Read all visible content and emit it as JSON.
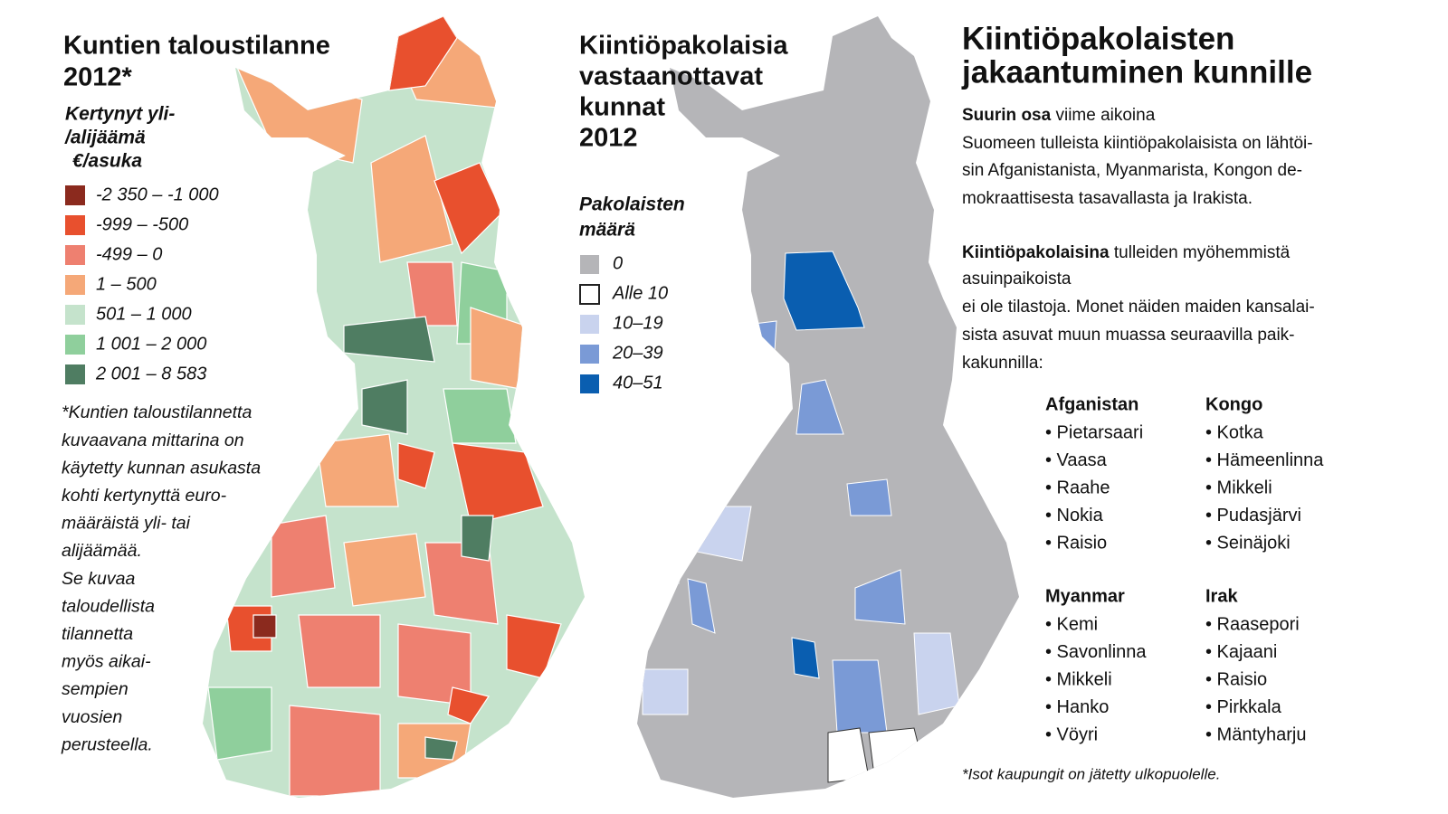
{
  "left_map": {
    "title_lines": [
      "Kuntien taloustilanne",
      "2012*"
    ],
    "legend_title_lines": [
      "Kertynyt yli-",
      "/alijäämä",
      "€/asuka"
    ],
    "legend": [
      {
        "label": "-2 350 – -1 000",
        "color": "#8b2a1e"
      },
      {
        "label": "-999 – -500",
        "color": "#e8502e"
      },
      {
        "label": "-499 – 0",
        "color": "#ee8070"
      },
      {
        "label": "1 – 500",
        "color": "#f5a878"
      },
      {
        "label": "501 – 1 000",
        "color": "#c5e3cc"
      },
      {
        "label": "1 001 – 2 000",
        "color": "#8fcf9c"
      },
      {
        "label": "2 001 – 8 583",
        "color": "#4f7d62"
      }
    ],
    "note_lines": [
      "*Kuntien taloustilannetta",
      "kuvaavana mittarina on",
      "käytetty kunnan asukasta",
      "kohti kertynyttä euro-",
      "määräistä yli- tai",
      "alijäämää.",
      "Se kuvaa",
      "taloudellista",
      "tilannetta",
      "myös aikai-",
      "sempien",
      "vuosien",
      "perusteella."
    ]
  },
  "middle_map": {
    "title_lines": [
      "Kiintiöpakolaisia",
      "vastaanottavat",
      "kunnat",
      "2012"
    ],
    "legend_title_lines": [
      "Pakolaisten",
      "määrä"
    ],
    "legend": [
      {
        "label": "0",
        "color": "#b5b5b8"
      },
      {
        "label": "Alle 10",
        "color": "#ffffff"
      },
      {
        "label": "10–19",
        "color": "#c9d3ee"
      },
      {
        "label": "20–39",
        "color": "#7a9ad6"
      },
      {
        "label": "40–51",
        "color": "#0a5eb0"
      }
    ]
  },
  "article": {
    "title_lines": [
      "Kiintiöpakolaisten",
      "jakaantuminen kunnille"
    ],
    "paragraph_lines": [
      [
        {
          "text": "Suurin osa",
          "bold": true
        },
        {
          "text": " viime aikoina"
        }
      ],
      [
        {
          "text": "Suomeen tulleista kiintiöpakolaisista on lähtöi-"
        }
      ],
      [
        {
          "text": "sin Afganistanista, Myanmarista, Kongon de-"
        }
      ],
      [
        {
          "text": "mokraattisesta tasavallasta ja Irakista."
        }
      ],
      [
        {
          "text": "Kiintiöpakolaisina",
          "bold": true
        },
        {
          "text": " tulleiden myöhemmistä"
        }
      ],
      [
        {
          "text": "asuinpaikoista"
        }
      ],
      [
        {
          "text": "ei ole tilastoja. Monet näiden maiden kansalai-"
        }
      ],
      [
        {
          "text": "sista asuvat muun muassa seuraavilla paik-"
        }
      ],
      [
        {
          "text": "kakunnilla:"
        }
      ]
    ],
    "groups": [
      {
        "heading": "Afganistan",
        "items": [
          "• Pietarsaari",
          "• Vaasa",
          "• Raahe",
          "• Nokia",
          "• Raisio"
        ]
      },
      {
        "heading": "Kongo",
        "items": [
          "• Kotka",
          "• Hämeenlinna",
          "• Mikkeli",
          "• Pudasjärvi",
          "• Seinäjoki"
        ]
      },
      {
        "heading": "Myanmar",
        "items": [
          "• Kemi",
          "• Savonlinna",
          "• Mikkeli",
          "• Hanko",
          "• Vöyri"
        ]
      },
      {
        "heading": "Irak",
        "items": [
          "• Raasepori",
          "• Kajaani",
          "• Raisio",
          "• Pirkkala",
          "• Mäntyharju"
        ]
      }
    ],
    "footnote": "*Isot kaupungit on jätetty ulkopuolelle."
  }
}
